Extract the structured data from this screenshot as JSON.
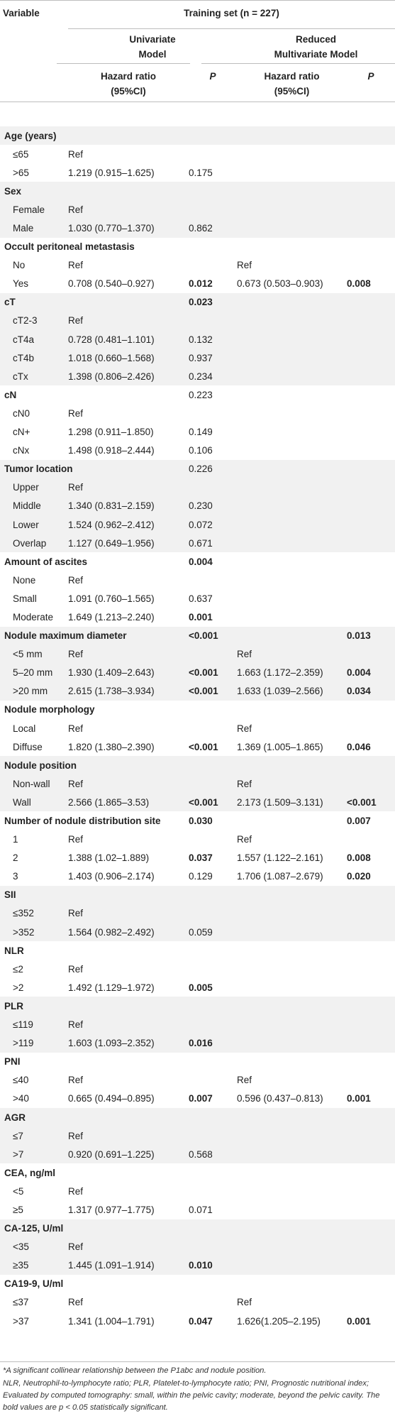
{
  "header": {
    "variable": "Variable",
    "training_set": "Training set (n = 227)",
    "univariate_line1": "Univariate",
    "univariate_line2": "Model",
    "reduced_line1": "Reduced",
    "reduced_line2": "Multivariate Model",
    "hr_line1": "Hazard ratio",
    "hr_line2": "(95%CI)",
    "p_label": "P"
  },
  "rows": [
    {
      "type": "group",
      "name": "Age (years)",
      "shade": true
    },
    {
      "type": "item",
      "name": "≤65",
      "uhr": "Ref"
    },
    {
      "type": "item",
      "name": ">65",
      "uhr": "1.219 (0.915–1.625)",
      "up": "0.175"
    },
    {
      "type": "group",
      "name": "Sex",
      "shade": true
    },
    {
      "type": "item",
      "name": "Female",
      "uhr": "Ref",
      "shade": true
    },
    {
      "type": "item",
      "name": "Male",
      "uhr": "1.030 (0.770–1.370)",
      "up": "0.862",
      "shade": true
    },
    {
      "type": "group",
      "name": "Occult peritoneal metastasis"
    },
    {
      "type": "item",
      "name": "No",
      "uhr": "Ref",
      "mhr": "Ref"
    },
    {
      "type": "item",
      "name": "Yes",
      "uhr": "0.708 (0.540–0.927)",
      "up": "0.012",
      "up_bold": true,
      "mhr": "0.673 (0.503–0.903)",
      "mp": "0.008",
      "mp_bold": true
    },
    {
      "type": "group",
      "name": "cT",
      "up": "0.023",
      "up_bold": true,
      "shade": true
    },
    {
      "type": "item",
      "name": "cT2-3",
      "uhr": "Ref",
      "shade": true
    },
    {
      "type": "item",
      "name": "cT4a",
      "uhr": "0.728 (0.481–1.101)",
      "up": "0.132",
      "shade": true
    },
    {
      "type": "item",
      "name": "cT4b",
      "uhr": "1.018 (0.660–1.568)",
      "up": "0.937",
      "shade": true
    },
    {
      "type": "item",
      "name": "cTx",
      "uhr": "1.398 (0.806–2.426)",
      "up": "0.234",
      "shade": true
    },
    {
      "type": "group",
      "name": "cN",
      "up": "0.223"
    },
    {
      "type": "item",
      "name": "cN0",
      "uhr": "Ref"
    },
    {
      "type": "item",
      "name": "cN+",
      "uhr": "1.298 (0.911–1.850)",
      "up": "0.149"
    },
    {
      "type": "item",
      "name": "cNx",
      "uhr": "1.498 (0.918–2.444)",
      "up": "0.106"
    },
    {
      "type": "group",
      "name": "Tumor location",
      "up": "0.226",
      "shade": true
    },
    {
      "type": "item",
      "name": "Upper",
      "uhr": "Ref",
      "shade": true
    },
    {
      "type": "item",
      "name": "Middle",
      "uhr": "1.340 (0.831–2.159)",
      "up": "0.230",
      "shade": true
    },
    {
      "type": "item",
      "name": "Lower",
      "uhr": "1.524 (0.962–2.412)",
      "up": "0.072",
      "shade": true
    },
    {
      "type": "item",
      "name": "Overlap",
      "uhr": "1.127 (0.649–1.956)",
      "up": "0.671",
      "shade": true
    },
    {
      "type": "group",
      "name": "Amount of ascites",
      "up": "0.004",
      "up_bold": true
    },
    {
      "type": "item",
      "name": "None",
      "uhr": "Ref"
    },
    {
      "type": "item",
      "name": "Small",
      "uhr": "1.091 (0.760–1.565)",
      "up": "0.637"
    },
    {
      "type": "item",
      "name": "Moderate",
      "uhr": "1.649 (1.213–2.240)",
      "up": "0.001",
      "up_bold": true
    },
    {
      "type": "group",
      "name": "Nodule maximum diameter",
      "up": "<0.001",
      "up_bold": true,
      "mp": "0.013",
      "mp_bold": true,
      "shade": true
    },
    {
      "type": "item",
      "name": "<5 mm",
      "uhr": "Ref",
      "mhr": "Ref",
      "shade": true
    },
    {
      "type": "item",
      "name": "5–20 mm",
      "uhr": "1.930 (1.409–2.643)",
      "up": "<0.001",
      "up_bold": true,
      "mhr": "1.663 (1.172–2.359)",
      "mp": "0.004",
      "mp_bold": true,
      "shade": true
    },
    {
      "type": "item",
      "name": ">20 mm",
      "uhr": "2.615 (1.738–3.934)",
      "up": "<0.001",
      "up_bold": true,
      "mhr": "1.633 (1.039–2.566)",
      "mp": "0.034",
      "mp_bold": true,
      "shade": true
    },
    {
      "type": "group",
      "name": "Nodule morphology"
    },
    {
      "type": "item",
      "name": "Local",
      "uhr": "Ref",
      "mhr": "Ref"
    },
    {
      "type": "item",
      "name": "Diffuse",
      "uhr": "1.820 (1.380–2.390)",
      "up": "<0.001",
      "up_bold": true,
      "mhr": "1.369 (1.005–1.865)",
      "mp": "0.046",
      "mp_bold": true
    },
    {
      "type": "group",
      "name": "Nodule position",
      "shade": true
    },
    {
      "type": "item",
      "name": "Non-wall",
      "uhr": "Ref",
      "mhr": "Ref",
      "shade": true
    },
    {
      "type": "item",
      "name": "Wall",
      "uhr": "2.566 (1.865–3.53)",
      "up": "<0.001",
      "up_bold": true,
      "mhr": "2.173 (1.509–3.131)",
      "mp": "<0.001",
      "mp_bold": true,
      "shade": true
    },
    {
      "type": "group",
      "name": "Number of nodule distribution site",
      "up": "0.030",
      "up_bold": true,
      "mp": "0.007",
      "mp_bold": true
    },
    {
      "type": "item",
      "name": "1",
      "uhr": "Ref",
      "mhr": "Ref"
    },
    {
      "type": "item",
      "name": "2",
      "uhr": "1.388 (1.02–1.889)",
      "up": "0.037",
      "up_bold": true,
      "mhr": "1.557 (1.122–2.161)",
      "mp": "0.008",
      "mp_bold": true
    },
    {
      "type": "item",
      "name": "3",
      "uhr": "1.403 (0.906–2.174)",
      "up": "0.129",
      "mhr": "1.706 (1.087–2.679)",
      "mp": "0.020",
      "mp_bold": true
    },
    {
      "type": "group",
      "name": "SII",
      "shade": true
    },
    {
      "type": "item",
      "name": "≤352",
      "uhr": "Ref",
      "shade": true
    },
    {
      "type": "item",
      "name": ">352",
      "uhr": "1.564 (0.982–2.492)",
      "up": "0.059",
      "shade": true
    },
    {
      "type": "group",
      "name": "NLR"
    },
    {
      "type": "item",
      "name": "≤2",
      "uhr": "Ref"
    },
    {
      "type": "item",
      "name": ">2",
      "uhr": "1.492 (1.129–1.972)",
      "up": "0.005",
      "up_bold": true
    },
    {
      "type": "group",
      "name": "PLR",
      "shade": true
    },
    {
      "type": "item",
      "name": "≤119",
      "uhr": "Ref",
      "shade": true
    },
    {
      "type": "item",
      "name": ">119",
      "uhr": "1.603 (1.093–2.352)",
      "up": "0.016",
      "up_bold": true,
      "shade": true
    },
    {
      "type": "group",
      "name": "PNI"
    },
    {
      "type": "item",
      "name": "≤40",
      "uhr": "Ref",
      "mhr": "Ref"
    },
    {
      "type": "item",
      "name": ">40",
      "uhr": "0.665 (0.494–0.895)",
      "up": "0.007",
      "up_bold": true,
      "mhr": "0.596 (0.437–0.813)",
      "mp": "0.001",
      "mp_bold": true
    },
    {
      "type": "group",
      "name": "AGR",
      "shade": true
    },
    {
      "type": "item",
      "name": "≤7",
      "uhr": "Ref",
      "shade": true
    },
    {
      "type": "item",
      "name": ">7",
      "uhr": "0.920 (0.691–1.225)",
      "up": "0.568",
      "shade": true
    },
    {
      "type": "group",
      "name": "CEA, ng/ml"
    },
    {
      "type": "item",
      "name": "<5",
      "uhr": "Ref"
    },
    {
      "type": "item",
      "name": "≥5",
      "uhr": "1.317 (0.977–1.775)",
      "up": "0.071"
    },
    {
      "type": "group",
      "name": "CA-125, U/ml",
      "shade": true
    },
    {
      "type": "item",
      "name": "<35",
      "uhr": "Ref",
      "shade": true
    },
    {
      "type": "item",
      "name": "≥35",
      "uhr": "1.445 (1.091–1.914)",
      "up": "0.010",
      "up_bold": true,
      "shade": true
    },
    {
      "type": "group",
      "name": "CA19-9, U/ml"
    },
    {
      "type": "item",
      "name": "≤37",
      "uhr": "Ref",
      "mhr": "Ref"
    },
    {
      "type": "item",
      "name": ">37",
      "uhr": "1.341 (1.004–1.791)",
      "up": "0.047",
      "up_bold": true,
      "mhr": "1.626(1.205–2.195)",
      "mp": "0.001",
      "mp_bold": true
    }
  ],
  "footnotes": {
    "line1": "*A significant collinear relationship between the P1abc and nodule position.",
    "line2": "NLR, Neutrophil-to-lymphocyte ratio; PLR, Platelet-to-lymphocyte ratio; PNI, Prognostic nutritional index; Evaluated by computed tomography: small, within the pelvic cavity; moderate, beyond the pelvic cavity. The bold values are p < 0.05 statistically significant."
  }
}
